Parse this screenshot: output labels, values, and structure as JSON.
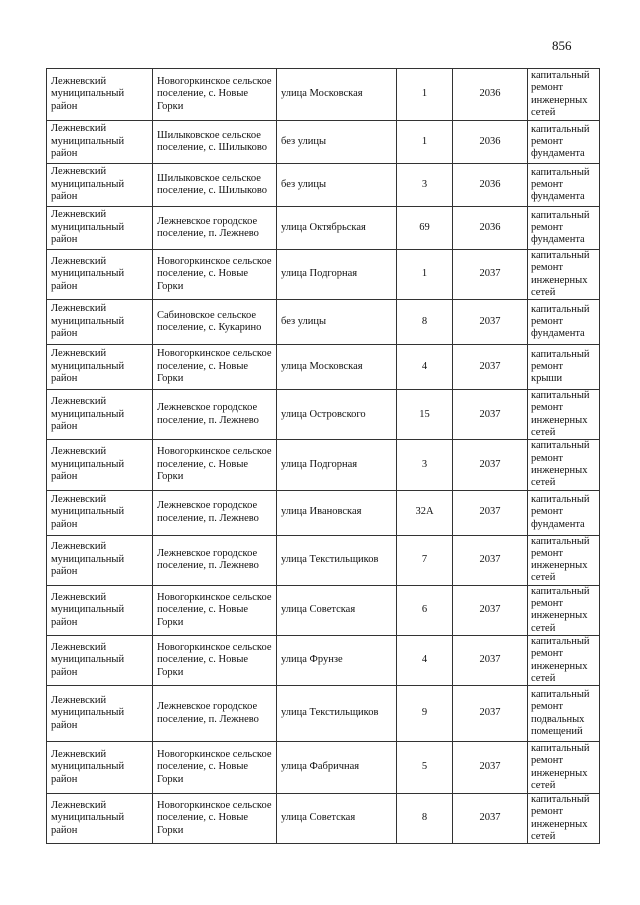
{
  "page_number": "856",
  "rows": [
    {
      "district": "Лежневский муниципальный район",
      "settlement": "Новогоркинское сельское поселение, с. Новые Горки",
      "street": "улица Московская",
      "house": "1",
      "year": "2036",
      "work": "капитальный ремонт инженерных сетей"
    },
    {
      "district": "Лежневский муниципальный район",
      "settlement": "Шилыковское сельское поселение, с. Шилыково",
      "street": "без улицы",
      "house": "1",
      "year": "2036",
      "work": "капитальный ремонт фундамента"
    },
    {
      "district": "Лежневский муниципальный район",
      "settlement": "Шилыковское сельское поселение, с. Шилыково",
      "street": "без улицы",
      "house": "3",
      "year": "2036",
      "work": "капитальный ремонт фундамента"
    },
    {
      "district": "Лежневский муниципальный район",
      "settlement": "Лежневское городское поселение, п. Лежнево",
      "street": "улица Октябрьская",
      "house": "69",
      "year": "2036",
      "work": "капитальный ремонт фундамента"
    },
    {
      "district": "Лежневский муниципальный район",
      "settlement": "Новогоркинское сельское поселение, с. Новые Горки",
      "street": "улица Подгорная",
      "house": "1",
      "year": "2037",
      "work": "капитальный ремонт инженерных сетей"
    },
    {
      "district": "Лежневский муниципальный район",
      "settlement": "Сабиновское сельское поселение, с. Кукарино",
      "street": "без улицы",
      "house": "8",
      "year": "2037",
      "work": "капитальный ремонт фундамента"
    },
    {
      "district": "Лежневский муниципальный район",
      "settlement": "Новогоркинское сельское поселение, с. Новые Горки",
      "street": "улица Московская",
      "house": "4",
      "year": "2037",
      "work": "капитальный ремонт крыши"
    },
    {
      "district": "Лежневский муниципальный район",
      "settlement": "Лежневское городское поселение, п. Лежнево",
      "street": "улица Островского",
      "house": "15",
      "year": "2037",
      "work": "капитальный ремонт инженерных сетей"
    },
    {
      "district": "Лежневский муниципальный район",
      "settlement": "Новогоркинское сельское поселение, с. Новые Горки",
      "street": "улица Подгорная",
      "house": "3",
      "year": "2037",
      "work": "капитальный ремонт инженерных сетей"
    },
    {
      "district": "Лежневский муниципальный район",
      "settlement": "Лежневское городское поселение, п. Лежнево",
      "street": "улица Ивановская",
      "house": "32А",
      "year": "2037",
      "work": "капитальный ремонт фундамента"
    },
    {
      "district": "Лежневский муниципальный район",
      "settlement": "Лежневское городское поселение, п. Лежнево",
      "street": "улица Текстильщиков",
      "house": "7",
      "year": "2037",
      "work": "капитальный ремонт инженерных сетей"
    },
    {
      "district": "Лежневский муниципальный район",
      "settlement": "Новогоркинское сельское поселение, с. Новые Горки",
      "street": "улица  Советская",
      "house": "6",
      "year": "2037",
      "work": "капитальный ремонт инженерных сетей"
    },
    {
      "district": "Лежневский муниципальный район",
      "settlement": "Новогоркинское сельское поселение, с. Новые Горки",
      "street": "улица Фрунзе",
      "house": "4",
      "year": "2037",
      "work": "капитальный ремонт инженерных сетей"
    },
    {
      "district": "Лежневский муниципальный район",
      "settlement": "Лежневское городское поселение, п. Лежнево",
      "street": "улица Текстильщиков",
      "house": "9",
      "year": "2037",
      "work": "капитальный ремонт подвальных помещений"
    },
    {
      "district": "Лежневский муниципальный район",
      "settlement": "Новогоркинское сельское поселение, с. Новые Горки",
      "street": "улица Фабричная",
      "house": "5",
      "year": "2037",
      "work": "капитальный ремонт инженерных сетей"
    },
    {
      "district": "Лежневский муниципальный район",
      "settlement": "Новогоркинское сельское поселение, с. Новые Горки",
      "street": "улица  Советская",
      "house": "8",
      "year": "2037",
      "work": "капитальный ремонт инженерных сетей"
    }
  ]
}
